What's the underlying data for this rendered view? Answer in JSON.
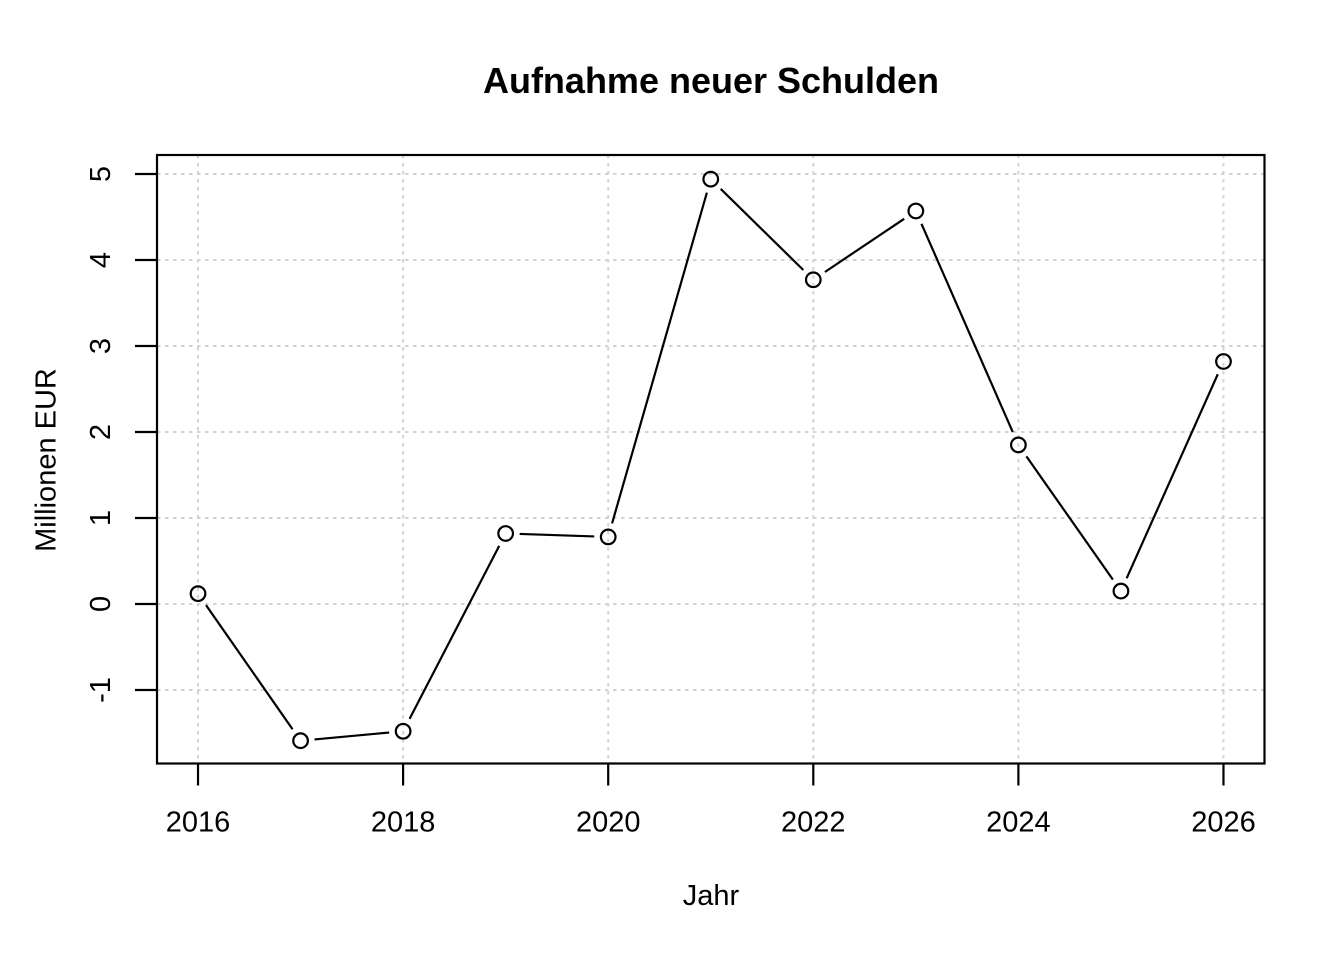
{
  "chart_data": {
    "type": "line",
    "title": "Aufnahme neuer Schulden",
    "xlabel": "Jahr",
    "ylabel": "Millionen EUR",
    "x": [
      2016,
      2017,
      2018,
      2019,
      2020,
      2021,
      2022,
      2023,
      2024,
      2025,
      2026
    ],
    "series": [
      {
        "name": "Aufnahme neuer Schulden",
        "values": [
          0.12,
          -1.59,
          -1.48,
          0.82,
          0.78,
          4.94,
          3.77,
          4.57,
          1.85,
          0.15,
          2.82
        ]
      }
    ],
    "x_ticks": [
      2016,
      2018,
      2020,
      2022,
      2024,
      2026
    ],
    "y_ticks": [
      -1,
      0,
      1,
      2,
      3,
      4,
      5
    ],
    "xlim": [
      2015.6,
      2026.4
    ],
    "ylim": [
      -1.855,
      5.221
    ],
    "grid": "dotted",
    "legend_position": "none",
    "marker": "open-circle",
    "line_style": "points-and-segments",
    "colors": {
      "line": "#000000",
      "marker": "#000000",
      "grid": "#d3d3d3",
      "text": "#000000",
      "background": "#ffffff"
    }
  }
}
